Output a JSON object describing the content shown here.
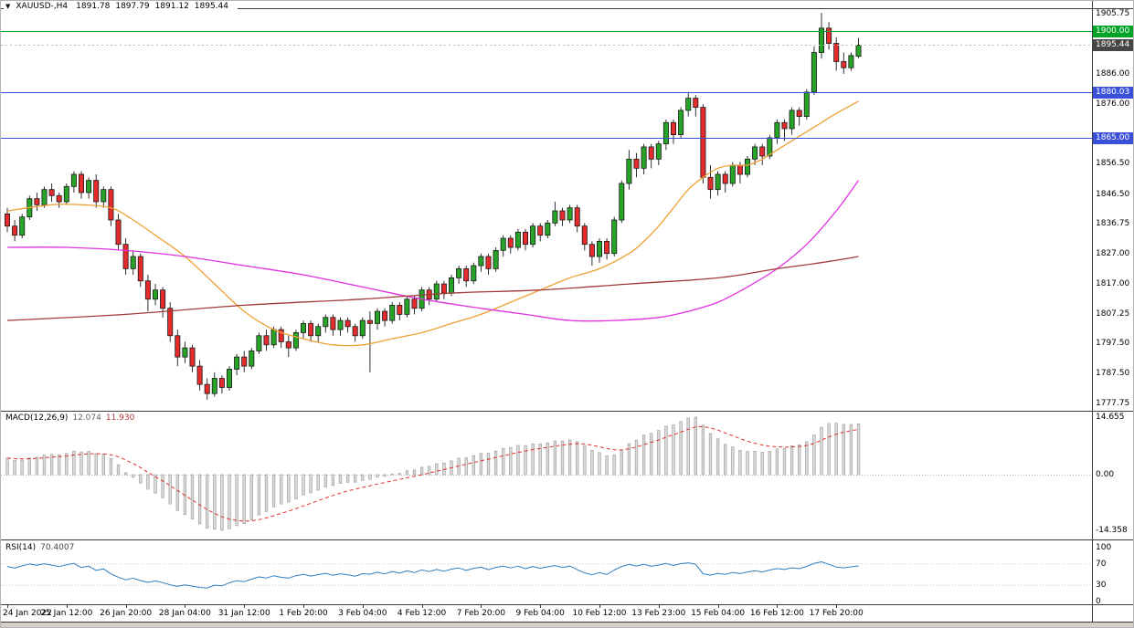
{
  "header": {
    "arrow_glyph": "▼",
    "symbol_period": "XAUUSD-,H4",
    "open": "1891.78",
    "high": "1897.79",
    "low": "1891.12",
    "close": "1895.44"
  },
  "macd_panel": {
    "label": "MACD(12,26,9)",
    "main_value": "12.074",
    "signal_value": "11.930",
    "scale_top": "14.655",
    "scale_zero": "0.00",
    "scale_bottom": "-14.358"
  },
  "rsi_panel": {
    "label": "RSI(14)",
    "value": "70.4007",
    "scale": [
      "100",
      "70",
      "30",
      "0"
    ]
  },
  "chart_data": {
    "type": "candlestick",
    "symbol": "XAUUSD-",
    "timeframe": "H4",
    "title": "XAUUSD-,H4 with MACD(12,26,9) and RSI(14)",
    "last_ohlc": {
      "open": 1891.78,
      "high": 1897.79,
      "low": 1891.12,
      "close": 1895.44
    },
    "ylim": [
      1777.75,
      1905.75
    ],
    "y_tick_labels": [
      "1905.75",
      "1886.00",
      "1876.00",
      "1856.50",
      "1846.50",
      "1836.75",
      "1827.00",
      "1817.00",
      "1807.25",
      "1797.50",
      "1787.50",
      "1777.75"
    ],
    "x_tick_labels": [
      "24 Jan 2022",
      "25 Jan 12:00",
      "26 Jan 20:00",
      "28 Jan 04:00",
      "31 Jan 12:00",
      "1 Feb 20:00",
      "3 Feb 04:00",
      "4 Feb 12:00",
      "7 Feb 20:00",
      "9 Feb 04:00",
      "10 Feb 12:00",
      "13 Feb 23:00",
      "15 Feb 04:00",
      "16 Feb 12:00",
      "17 Feb 20:00"
    ],
    "x_tick_indices": [
      0,
      8,
      16,
      24,
      32,
      40,
      48,
      56,
      64,
      72,
      80,
      88,
      96,
      104,
      112
    ],
    "levels": [
      {
        "name": "resistance",
        "price": 1900.0,
        "label": "1900.00",
        "style": "solid",
        "color_key": "level_green"
      },
      {
        "name": "current_price",
        "price": 1895.44,
        "label": "1895.44",
        "style": "dotted",
        "color_key": "current_badge"
      },
      {
        "name": "support_upper",
        "price": 1880.03,
        "label": "1880.03",
        "style": "solid",
        "color_key": "level_blue"
      },
      {
        "name": "support_lower",
        "price": 1865.0,
        "label": "1865.00",
        "style": "solid",
        "color_key": "level_blue"
      }
    ],
    "candles": [
      [
        1840,
        1842,
        1834,
        1836
      ],
      [
        1836,
        1838,
        1831,
        1833
      ],
      [
        1833,
        1840,
        1832,
        1839
      ],
      [
        1839,
        1846,
        1838,
        1845
      ],
      [
        1845,
        1847,
        1841,
        1843
      ],
      [
        1843,
        1849,
        1842,
        1848
      ],
      [
        1848,
        1850,
        1844,
        1846
      ],
      [
        1846,
        1847,
        1842,
        1844
      ],
      [
        1844,
        1850,
        1843,
        1849
      ],
      [
        1849,
        1854,
        1847,
        1853
      ],
      [
        1853,
        1854,
        1845,
        1847
      ],
      [
        1847,
        1852,
        1845,
        1851
      ],
      [
        1851,
        1853,
        1842,
        1844
      ],
      [
        1844,
        1849,
        1842,
        1848
      ],
      [
        1848,
        1849,
        1836,
        1838
      ],
      [
        1838,
        1840,
        1828,
        1830
      ],
      [
        1830,
        1832,
        1820,
        1822
      ],
      [
        1822,
        1828,
        1820,
        1826
      ],
      [
        1826,
        1827,
        1816,
        1818
      ],
      [
        1818,
        1820,
        1808,
        1812
      ],
      [
        1812,
        1817,
        1810,
        1815
      ],
      [
        1815,
        1816,
        1806,
        1809
      ],
      [
        1809,
        1811,
        1798,
        1800
      ],
      [
        1800,
        1802,
        1790,
        1793
      ],
      [
        1793,
        1798,
        1791,
        1796
      ],
      [
        1796,
        1797,
        1788,
        1790
      ],
      [
        1790,
        1792,
        1782,
        1784
      ],
      [
        1784,
        1786,
        1779,
        1781
      ],
      [
        1781,
        1788,
        1780,
        1786
      ],
      [
        1786,
        1787,
        1781,
        1783
      ],
      [
        1783,
        1790,
        1782,
        1789
      ],
      [
        1789,
        1794,
        1787,
        1793
      ],
      [
        1793,
        1795,
        1788,
        1790
      ],
      [
        1790,
        1796,
        1789,
        1795
      ],
      [
        1795,
        1801,
        1794,
        1800
      ],
      [
        1800,
        1802,
        1795,
        1797
      ],
      [
        1797,
        1803,
        1796,
        1802
      ],
      [
        1802,
        1803,
        1796,
        1798
      ],
      [
        1798,
        1800,
        1793,
        1796
      ],
      [
        1796,
        1802,
        1795,
        1801
      ],
      [
        1801,
        1805,
        1799,
        1804
      ],
      [
        1804,
        1805,
        1798,
        1800
      ],
      [
        1800,
        1804,
        1798,
        1803
      ],
      [
        1803,
        1807,
        1801,
        1806
      ],
      [
        1806,
        1807,
        1800,
        1802
      ],
      [
        1802,
        1806,
        1800,
        1805
      ],
      [
        1805,
        1806,
        1801,
        1803
      ],
      [
        1803,
        1804,
        1798,
        1800
      ],
      [
        1800,
        1806,
        1799,
        1805
      ],
      [
        1805,
        1808,
        1788,
        1804
      ],
      [
        1804,
        1809,
        1802,
        1808
      ],
      [
        1808,
        1809,
        1803,
        1805
      ],
      [
        1805,
        1811,
        1804,
        1810
      ],
      [
        1810,
        1811,
        1805,
        1807
      ],
      [
        1807,
        1813,
        1806,
        1812
      ],
      [
        1812,
        1813,
        1807,
        1809
      ],
      [
        1809,
        1816,
        1808,
        1815
      ],
      [
        1815,
        1816,
        1810,
        1812
      ],
      [
        1812,
        1818,
        1811,
        1817
      ],
      [
        1817,
        1818,
        1812,
        1814
      ],
      [
        1814,
        1820,
        1813,
        1819
      ],
      [
        1819,
        1823,
        1817,
        1822
      ],
      [
        1822,
        1823,
        1816,
        1818
      ],
      [
        1818,
        1824,
        1817,
        1823
      ],
      [
        1823,
        1827,
        1821,
        1826
      ],
      [
        1826,
        1827,
        1820,
        1822
      ],
      [
        1822,
        1829,
        1821,
        1828
      ],
      [
        1828,
        1833,
        1826,
        1832
      ],
      [
        1832,
        1833,
        1827,
        1829
      ],
      [
        1829,
        1835,
        1828,
        1834
      ],
      [
        1834,
        1835,
        1828,
        1830
      ],
      [
        1830,
        1837,
        1829,
        1836
      ],
      [
        1836,
        1837,
        1831,
        1833
      ],
      [
        1833,
        1838,
        1832,
        1837
      ],
      [
        1837,
        1844,
        1836,
        1841
      ],
      [
        1841,
        1842,
        1836,
        1838
      ],
      [
        1838,
        1843,
        1837,
        1842
      ],
      [
        1842,
        1843,
        1834,
        1836
      ],
      [
        1836,
        1837,
        1828,
        1830
      ],
      [
        1830,
        1831,
        1823,
        1826
      ],
      [
        1826,
        1832,
        1824,
        1831
      ],
      [
        1831,
        1832,
        1825,
        1827
      ],
      [
        1827,
        1839,
        1826,
        1838
      ],
      [
        1838,
        1851,
        1837,
        1850
      ],
      [
        1850,
        1861,
        1848,
        1858
      ],
      [
        1858,
        1860,
        1852,
        1855
      ],
      [
        1855,
        1863,
        1853,
        1862
      ],
      [
        1862,
        1863,
        1855,
        1858
      ],
      [
        1858,
        1864,
        1856,
        1863
      ],
      [
        1863,
        1871,
        1861,
        1870
      ],
      [
        1870,
        1871,
        1863,
        1866
      ],
      [
        1866,
        1875,
        1865,
        1874
      ],
      [
        1874,
        1880,
        1872,
        1878
      ],
      [
        1878,
        1879,
        1872,
        1875
      ],
      [
        1875,
        1876,
        1850,
        1852
      ],
      [
        1852,
        1856,
        1845,
        1848
      ],
      [
        1848,
        1854,
        1846,
        1853
      ],
      [
        1853,
        1854,
        1847,
        1850
      ],
      [
        1850,
        1857,
        1849,
        1856
      ],
      [
        1856,
        1857,
        1850,
        1853
      ],
      [
        1853,
        1859,
        1852,
        1858
      ],
      [
        1858,
        1863,
        1856,
        1862
      ],
      [
        1862,
        1863,
        1856,
        1859
      ],
      [
        1859,
        1866,
        1858,
        1865
      ],
      [
        1865,
        1871,
        1863,
        1870
      ],
      [
        1870,
        1871,
        1864,
        1868
      ],
      [
        1868,
        1875,
        1866,
        1874
      ],
      [
        1874,
        1875,
        1869,
        1872
      ],
      [
        1872,
        1881,
        1871,
        1880
      ],
      [
        1880,
        1895,
        1879,
        1893
      ],
      [
        1893,
        1906,
        1891,
        1901
      ],
      [
        1901,
        1903,
        1894,
        1896
      ],
      [
        1896,
        1898,
        1887,
        1890
      ],
      [
        1890,
        1893,
        1886,
        1888
      ],
      [
        1888,
        1893,
        1887,
        1892
      ],
      [
        1891.78,
        1897.79,
        1891.12,
        1895.44
      ]
    ],
    "moving_averages": [
      {
        "name": "ma_fast",
        "color_key": "ma_fast",
        "points": [
          [
            0,
            1841
          ],
          [
            6,
            1843
          ],
          [
            10,
            1843
          ],
          [
            14,
            1842
          ],
          [
            17,
            1838
          ],
          [
            20,
            1833
          ],
          [
            24,
            1826
          ],
          [
            28,
            1817
          ],
          [
            32,
            1808
          ],
          [
            36,
            1802
          ],
          [
            40,
            1799
          ],
          [
            44,
            1797
          ],
          [
            48,
            1797
          ],
          [
            52,
            1799
          ],
          [
            56,
            1801
          ],
          [
            60,
            1804
          ],
          [
            64,
            1807
          ],
          [
            68,
            1811
          ],
          [
            72,
            1815
          ],
          [
            76,
            1819
          ],
          [
            80,
            1822
          ],
          [
            84,
            1827
          ],
          [
            86,
            1831
          ],
          [
            88,
            1836
          ],
          [
            90,
            1842
          ],
          [
            92,
            1848
          ],
          [
            94,
            1852
          ],
          [
            96,
            1855
          ],
          [
            98,
            1856
          ],
          [
            100,
            1856
          ],
          [
            102,
            1858
          ],
          [
            104,
            1861
          ],
          [
            106,
            1864
          ],
          [
            108,
            1867
          ],
          [
            110,
            1870
          ],
          [
            112,
            1873
          ],
          [
            115,
            1877
          ]
        ]
      },
      {
        "name": "ma_mid",
        "color_key": "ma_mid",
        "points": [
          [
            0,
            1829
          ],
          [
            8,
            1829
          ],
          [
            16,
            1828
          ],
          [
            24,
            1826
          ],
          [
            32,
            1823
          ],
          [
            40,
            1820
          ],
          [
            48,
            1816
          ],
          [
            56,
            1812
          ],
          [
            64,
            1809
          ],
          [
            70,
            1807
          ],
          [
            76,
            1805
          ],
          [
            82,
            1805
          ],
          [
            88,
            1806
          ],
          [
            92,
            1808
          ],
          [
            96,
            1811
          ],
          [
            100,
            1816
          ],
          [
            104,
            1822
          ],
          [
            108,
            1830
          ],
          [
            112,
            1841
          ],
          [
            115,
            1851
          ]
        ]
      },
      {
        "name": "ma_slow",
        "color_key": "ma_slow",
        "points": [
          [
            0,
            1805
          ],
          [
            16,
            1807
          ],
          [
            32,
            1810
          ],
          [
            48,
            1812
          ],
          [
            60,
            1814
          ],
          [
            72,
            1815
          ],
          [
            84,
            1817
          ],
          [
            96,
            1819
          ],
          [
            104,
            1822
          ],
          [
            110,
            1824
          ],
          [
            115,
            1826
          ]
        ]
      }
    ],
    "indicators": {
      "macd": {
        "fast": 12,
        "slow": 26,
        "signal": 9,
        "current_main": 12.074,
        "current_signal": 11.93,
        "scale_max": 14.655,
        "scale_min": -14.358
      },
      "rsi": {
        "period": 14,
        "current": 70.4007,
        "levels": [
          30,
          70
        ]
      }
    }
  },
  "colors": {
    "background": "#FFFFFF",
    "candle_up": "#27A427",
    "candle_down": "#E52B2B",
    "candle_outline": "#1A1A1A",
    "ma_fast": "#EFA033",
    "ma_mid": "#E032E0",
    "ma_slow": "#A33A3A",
    "level_green": "#00A326",
    "level_blue": "#3A50D9",
    "current_badge": "#464646",
    "current_line": "#BCBCBC",
    "macd_hist_fill": "#DCDCDC",
    "macd_hist_stroke": "#9E9E9E",
    "macd_signal": "#E03030",
    "rsi_line": "#2E7FC2",
    "separator": "#3C3C3C",
    "bottom_strip": "#D4D0C8"
  }
}
